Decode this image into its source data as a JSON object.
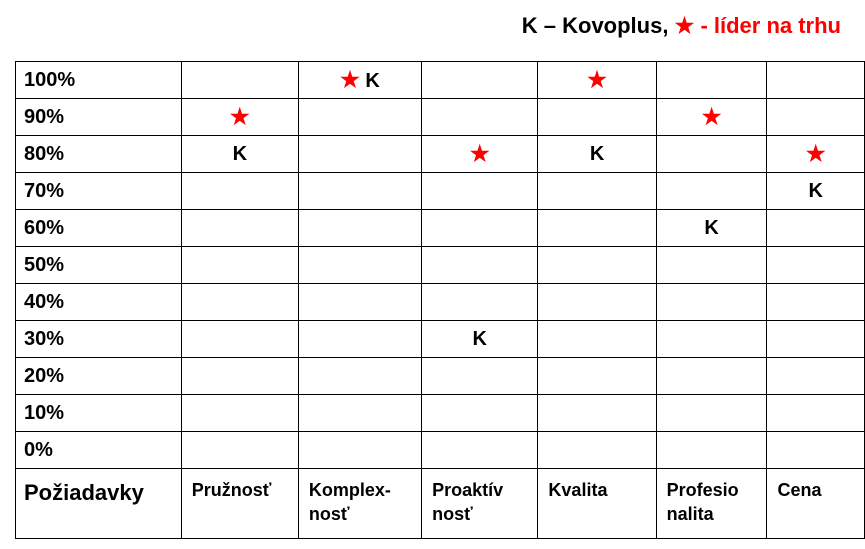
{
  "legend": {
    "k_text": "K – Kovoplus,",
    "star_symbol": "★",
    "star_text": "- líder na trhu"
  },
  "colors": {
    "star": "#ff0000",
    "text": "#000000",
    "border": "#000000"
  },
  "table": {
    "header_label": "Požiadavky",
    "requirements": [
      {
        "line1": "Pružnosť",
        "line2": ""
      },
      {
        "line1": "Komplex-",
        "line2": "nosť"
      },
      {
        "line1": "Proaktív",
        "line2": "nosť"
      },
      {
        "line1": "Kvalita",
        "line2": ""
      },
      {
        "line1": "Profesio",
        "line2": "nalita"
      },
      {
        "line1": "Cena",
        "line2": ""
      }
    ],
    "rows": [
      {
        "label": "100%",
        "cells": [
          [
            "",
            ""
          ],
          [
            "★",
            "K"
          ],
          [
            "",
            ""
          ],
          [
            "★",
            ""
          ],
          [
            "",
            ""
          ],
          [
            "",
            ""
          ]
        ]
      },
      {
        "label": "90%",
        "cells": [
          [
            "★",
            ""
          ],
          [
            "",
            ""
          ],
          [
            "",
            ""
          ],
          [
            "",
            ""
          ],
          [
            "★",
            ""
          ],
          [
            "",
            ""
          ]
        ]
      },
      {
        "label": "80%",
        "cells": [
          [
            "",
            "K"
          ],
          [
            "",
            ""
          ],
          [
            "★",
            ""
          ],
          [
            "",
            "K"
          ],
          [
            "",
            ""
          ],
          [
            "★",
            ""
          ]
        ]
      },
      {
        "label": "70%",
        "cells": [
          [
            "",
            ""
          ],
          [
            "",
            ""
          ],
          [
            "",
            ""
          ],
          [
            "",
            ""
          ],
          [
            "",
            ""
          ],
          [
            "",
            "K"
          ]
        ]
      },
      {
        "label": "60%",
        "cells": [
          [
            "",
            ""
          ],
          [
            "",
            ""
          ],
          [
            "",
            ""
          ],
          [
            "",
            ""
          ],
          [
            "",
            "K"
          ],
          [
            "",
            ""
          ]
        ]
      },
      {
        "label": "50%",
        "cells": [
          [
            "",
            ""
          ],
          [
            "",
            ""
          ],
          [
            "",
            ""
          ],
          [
            "",
            ""
          ],
          [
            "",
            ""
          ],
          [
            "",
            ""
          ]
        ]
      },
      {
        "label": "40%",
        "cells": [
          [
            "",
            ""
          ],
          [
            "",
            ""
          ],
          [
            "",
            ""
          ],
          [
            "",
            ""
          ],
          [
            "",
            ""
          ],
          [
            "",
            ""
          ]
        ]
      },
      {
        "label": "30%",
        "cells": [
          [
            "",
            ""
          ],
          [
            "",
            ""
          ],
          [
            "",
            "K"
          ],
          [
            "",
            ""
          ],
          [
            "",
            ""
          ],
          [
            "",
            ""
          ]
        ]
      },
      {
        "label": "20%",
        "cells": [
          [
            "",
            ""
          ],
          [
            "",
            ""
          ],
          [
            "",
            ""
          ],
          [
            "",
            ""
          ],
          [
            "",
            ""
          ],
          [
            "",
            ""
          ]
        ]
      },
      {
        "label": "10%",
        "cells": [
          [
            "",
            ""
          ],
          [
            "",
            ""
          ],
          [
            "",
            ""
          ],
          [
            "",
            ""
          ],
          [
            "",
            ""
          ],
          [
            "",
            ""
          ]
        ]
      },
      {
        "label": "0%",
        "cells": [
          [
            "",
            ""
          ],
          [
            "",
            ""
          ],
          [
            "",
            ""
          ],
          [
            "",
            ""
          ],
          [
            "",
            ""
          ],
          [
            "",
            ""
          ]
        ]
      }
    ]
  }
}
